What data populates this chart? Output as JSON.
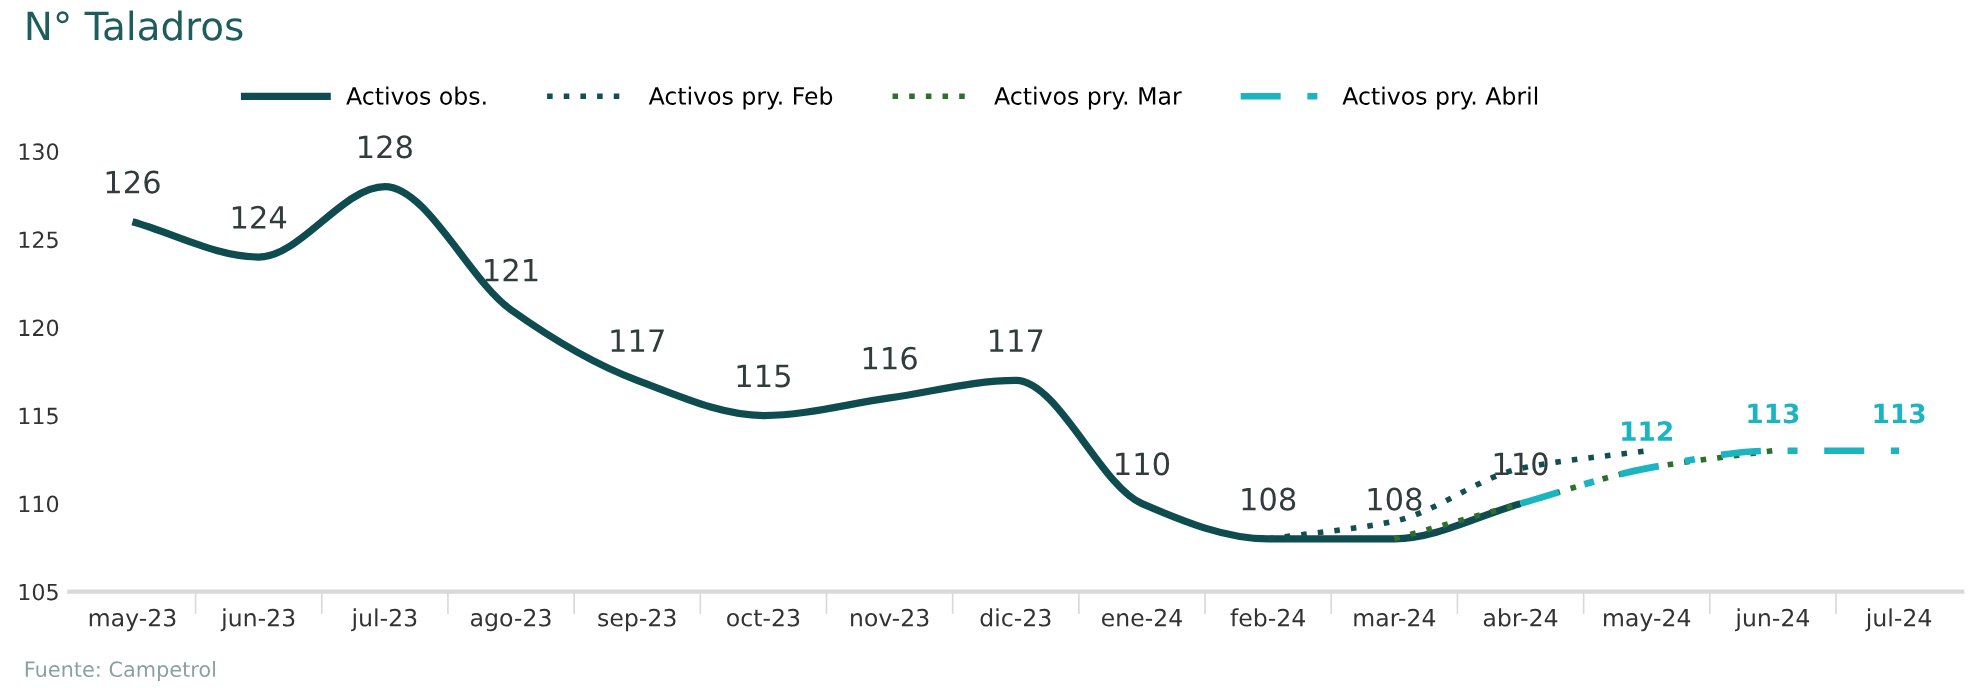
{
  "chart_data": {
    "type": "line",
    "title": "N° Taladros",
    "categories": [
      "may-23",
      "jun-23",
      "jul-23",
      "ago-23",
      "sep-23",
      "oct-23",
      "nov-23",
      "dic-23",
      "ene-24",
      "feb-24",
      "mar-24",
      "abr-24",
      "may-24",
      "jun-24",
      "jul-24"
    ],
    "series": [
      {
        "name": "Activos obs.",
        "color": "#0e4c4f",
        "line_style": "solid",
        "values": [
          126,
          124,
          128,
          121,
          117,
          115,
          116,
          117,
          110,
          108,
          108,
          110,
          null,
          null,
          null
        ],
        "value_labels": [
          "126",
          "124",
          "128",
          "121",
          "117",
          "115",
          "116",
          "117",
          "110",
          "108",
          "108",
          "110",
          null,
          null,
          null
        ]
      },
      {
        "name": "Activos pry. Feb",
        "color": "#124e52",
        "line_style": "dotted",
        "values": [
          null,
          null,
          null,
          null,
          null,
          null,
          null,
          null,
          null,
          108,
          109,
          112,
          113,
          null,
          null
        ]
      },
      {
        "name": "Activos pry. Mar",
        "color": "#2e6e2e",
        "line_style": "dotted",
        "values": [
          null,
          null,
          null,
          null,
          null,
          null,
          null,
          null,
          null,
          null,
          108,
          110,
          112,
          113,
          null
        ]
      },
      {
        "name": "Activos pry. Abril",
        "color": "#1bb5c2",
        "line_style": "dashed",
        "values": [
          null,
          null,
          null,
          null,
          null,
          null,
          null,
          null,
          null,
          null,
          null,
          110,
          112,
          113,
          113
        ],
        "value_labels": [
          null,
          null,
          null,
          null,
          null,
          null,
          null,
          null,
          null,
          null,
          null,
          null,
          "112",
          "113",
          "113"
        ]
      }
    ],
    "ylim": [
      105,
      130
    ],
    "yticks": [
      105,
      110,
      115,
      120,
      125,
      130
    ],
    "grid": false,
    "legend": "top",
    "marker": "none",
    "annotations": [
      "Fuente: Campetrol"
    ]
  }
}
